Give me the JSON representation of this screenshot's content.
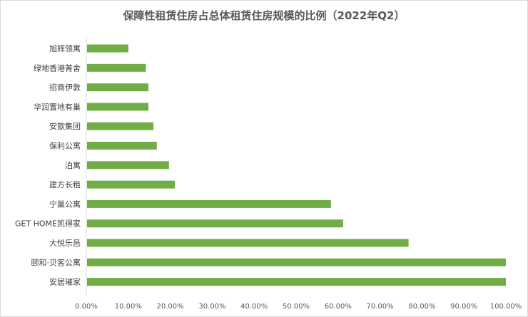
{
  "chart_data": {
    "type": "bar",
    "orientation": "horizontal",
    "title": "保障性租赁住房占总体租赁住房规模的比例（2022年Q2）",
    "categories": [
      "旭辉领寓",
      "绿地香港菁舍",
      "招商伊敦",
      "华润置地有巢",
      "安歆集团",
      "保利公寓",
      "泊寓",
      "建方长租",
      "宁巢公寓",
      "GET HOME凯得家",
      "大悦乐邑",
      "颐和·贝客公寓",
      "安居璀家"
    ],
    "values": [
      10.0,
      14.2,
      14.8,
      14.8,
      16.0,
      16.8,
      19.7,
      21.1,
      58.3,
      61.2,
      76.8,
      100.0,
      100.0
    ],
    "xlim": [
      0,
      100
    ],
    "xticks": [
      "0.00%",
      "10.00%",
      "20.00%",
      "30.00%",
      "40.00%",
      "50.00%",
      "60.00%",
      "70.00%",
      "80.00%",
      "90.00%",
      "100.00%"
    ],
    "xlabel": "",
    "ylabel": "",
    "grid": false,
    "legend": "none",
    "bar_color": "#70ad47"
  }
}
